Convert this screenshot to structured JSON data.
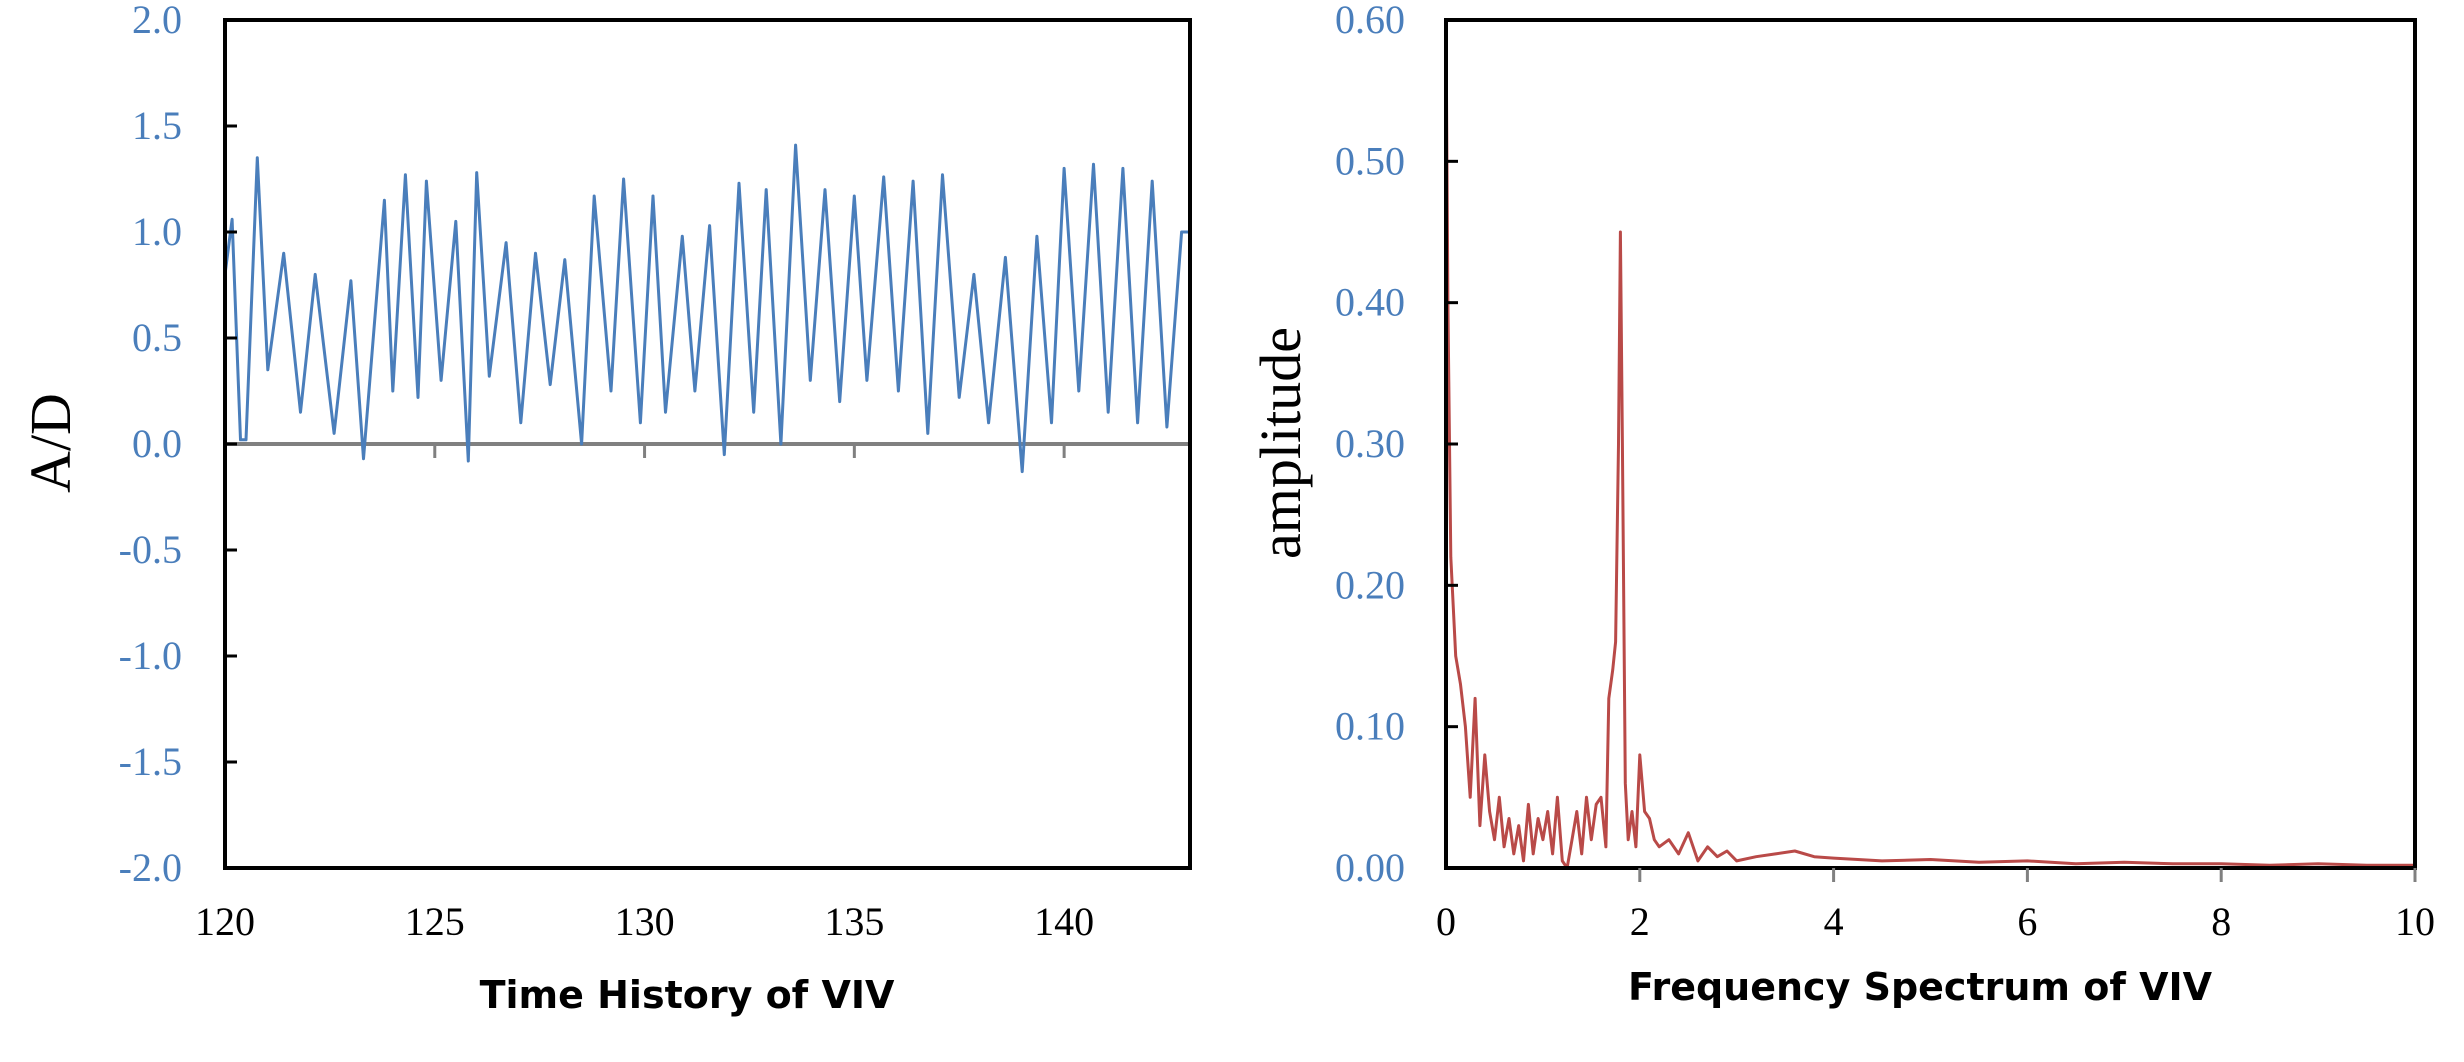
{
  "colors": {
    "left_series": "#4a7ebb",
    "right_series": "#b94a48",
    "left_axis_text": "#4a7ebb",
    "right_axis_text": "#4a7ebb",
    "bottom_axis_text": "#000000",
    "zero_line": "#808080",
    "frame": "#000000"
  },
  "chart_data": [
    {
      "type": "line",
      "caption": "Time History of VIV",
      "xlabel": "",
      "ylabel": "A/D",
      "xlim": [
        120,
        143
      ],
      "ylim": [
        -2.0,
        2.0
      ],
      "x_ticks": [
        120,
        125,
        130,
        135,
        140
      ],
      "x_tick_labels": [
        "120",
        "125",
        "130",
        "135",
        "140"
      ],
      "y_ticks": [
        2.0,
        1.5,
        1.0,
        0.5,
        0.0,
        -0.5,
        -1.0,
        -1.5,
        -2.0
      ],
      "y_tick_labels": [
        "2.0",
        "1.5",
        "1.0",
        "0.5",
        "0.0",
        "-0.5",
        "-1.0",
        "-1.5",
        "-2.0"
      ],
      "grid": false,
      "legend": "none",
      "series": [
        {
          "x": [
            120.0,
            120.17,
            120.37,
            120.5,
            120.77,
            121.02,
            121.4,
            121.8,
            122.15,
            122.6,
            123.0,
            123.3,
            123.8,
            124.0,
            124.3,
            124.6,
            124.8,
            125.15,
            125.5,
            125.8,
            126.0,
            126.3,
            126.7,
            127.05,
            127.4,
            127.75,
            128.1,
            128.5,
            128.8,
            129.2,
            129.5,
            129.9,
            130.2,
            130.5,
            130.9,
            131.2,
            131.55,
            131.9,
            132.25,
            132.6,
            132.9,
            133.25,
            133.6,
            133.95,
            134.3,
            134.65,
            135.0,
            135.3,
            135.7,
            136.05,
            136.4,
            136.75,
            137.1,
            137.5,
            137.85,
            138.2,
            138.6,
            139.0,
            139.35,
            139.7,
            140.0,
            140.35,
            140.7,
            141.05,
            141.4,
            141.75,
            142.1,
            142.45,
            142.8,
            143.0
          ],
          "y": [
            0.8,
            1.06,
            0.02,
            0.02,
            1.35,
            0.35,
            0.9,
            0.15,
            0.8,
            0.05,
            0.77,
            -0.07,
            1.15,
            0.25,
            1.27,
            0.22,
            1.24,
            0.3,
            1.05,
            -0.08,
            1.28,
            0.32,
            0.95,
            0.1,
            0.9,
            0.28,
            0.87,
            0.0,
            1.17,
            0.25,
            1.25,
            0.1,
            1.17,
            0.15,
            0.98,
            0.25,
            1.03,
            -0.05,
            1.23,
            0.15,
            1.2,
            0.0,
            1.41,
            0.3,
            1.2,
            0.2,
            1.17,
            0.3,
            1.26,
            0.25,
            1.24,
            0.05,
            1.27,
            0.22,
            0.8,
            0.1,
            0.88,
            -0.13,
            0.98,
            0.1,
            1.3,
            0.25,
            1.32,
            0.15,
            1.3,
            0.1,
            1.24,
            0.08,
            1.0,
            1.0
          ]
        }
      ]
    },
    {
      "type": "line",
      "caption": "Frequency Spectrum of VIV",
      "xlabel": "",
      "ylabel": "amplitude",
      "xlim": [
        0,
        10
      ],
      "ylim": [
        0.0,
        0.6
      ],
      "x_ticks": [
        0,
        2,
        4,
        6,
        8,
        10
      ],
      "x_tick_labels": [
        "0",
        "2",
        "4",
        "6",
        "8",
        "10"
      ],
      "y_ticks": [
        0.6,
        0.5,
        0.4,
        0.3,
        0.2,
        0.1,
        0.0
      ],
      "y_tick_labels": [
        "0.60",
        "0.50",
        "0.40",
        "0.30",
        "0.20",
        "0.10",
        "0.00"
      ],
      "grid": false,
      "legend": "none",
      "series": [
        {
          "x": [
            0.0,
            0.02,
            0.05,
            0.1,
            0.15,
            0.2,
            0.25,
            0.3,
            0.35,
            0.4,
            0.45,
            0.5,
            0.55,
            0.6,
            0.65,
            0.7,
            0.75,
            0.8,
            0.85,
            0.9,
            0.95,
            1.0,
            1.05,
            1.1,
            1.15,
            1.2,
            1.25,
            1.3,
            1.35,
            1.4,
            1.45,
            1.5,
            1.55,
            1.6,
            1.65,
            1.68,
            1.72,
            1.75,
            1.78,
            1.8,
            1.82,
            1.85,
            1.88,
            1.92,
            1.96,
            2.0,
            2.05,
            2.1,
            2.15,
            2.2,
            2.3,
            2.4,
            2.5,
            2.6,
            2.7,
            2.8,
            2.9,
            3.0,
            3.2,
            3.4,
            3.6,
            3.8,
            4.0,
            4.5,
            5.0,
            5.5,
            6.0,
            6.5,
            7.0,
            7.5,
            8.0,
            8.5,
            9.0,
            9.5,
            10.0
          ],
          "y": [
            0.6,
            0.4,
            0.22,
            0.15,
            0.13,
            0.1,
            0.05,
            0.12,
            0.03,
            0.08,
            0.04,
            0.02,
            0.05,
            0.015,
            0.035,
            0.01,
            0.03,
            0.005,
            0.045,
            0.01,
            0.035,
            0.02,
            0.04,
            0.01,
            0.05,
            0.005,
            0.0,
            0.02,
            0.04,
            0.01,
            0.05,
            0.02,
            0.045,
            0.05,
            0.015,
            0.12,
            0.14,
            0.16,
            0.3,
            0.45,
            0.3,
            0.06,
            0.02,
            0.04,
            0.015,
            0.08,
            0.04,
            0.035,
            0.02,
            0.015,
            0.02,
            0.01,
            0.025,
            0.005,
            0.015,
            0.008,
            0.012,
            0.005,
            0.008,
            0.01,
            0.012,
            0.008,
            0.007,
            0.005,
            0.006,
            0.004,
            0.005,
            0.003,
            0.004,
            0.003,
            0.003,
            0.002,
            0.003,
            0.002,
            0.002
          ]
        }
      ]
    }
  ]
}
